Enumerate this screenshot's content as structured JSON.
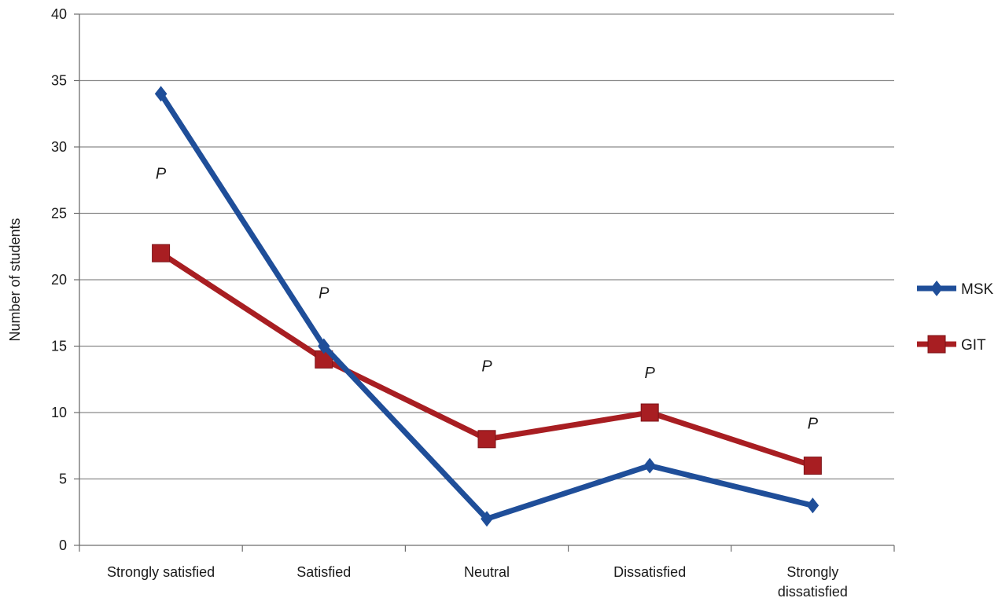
{
  "chart_data": {
    "type": "line",
    "title": "",
    "xlabel": "",
    "ylabel": "Number of students",
    "ylim": [
      0,
      40
    ],
    "yticks": [
      0,
      5,
      10,
      15,
      20,
      25,
      30,
      35,
      40
    ],
    "grid": true,
    "legend_position": "right",
    "categories": [
      [
        "Strongly satisfied"
      ],
      [
        "Satisfied"
      ],
      [
        "Neutral"
      ],
      [
        "Dissatisfied"
      ],
      [
        "Strongly",
        "dissatisfied"
      ]
    ],
    "series": [
      {
        "name": "MSK",
        "color": "#1f4e99",
        "marker": "diamond",
        "values": [
          34,
          15,
          2,
          6,
          3
        ]
      },
      {
        "name": "GIT",
        "color": "#a81e22",
        "marker": "square",
        "values": [
          22,
          14,
          8,
          10,
          6
        ]
      }
    ],
    "annotations": [
      {
        "text": "P",
        "category_index": 0,
        "y": 27.6
      },
      {
        "text": "P",
        "category_index": 1,
        "y": 18.6
      },
      {
        "text": "P",
        "category_index": 2,
        "y": 13.1
      },
      {
        "text": "P",
        "category_index": 3,
        "y": 12.6
      },
      {
        "text": "P",
        "category_index": 4,
        "y": 8.8
      }
    ]
  }
}
